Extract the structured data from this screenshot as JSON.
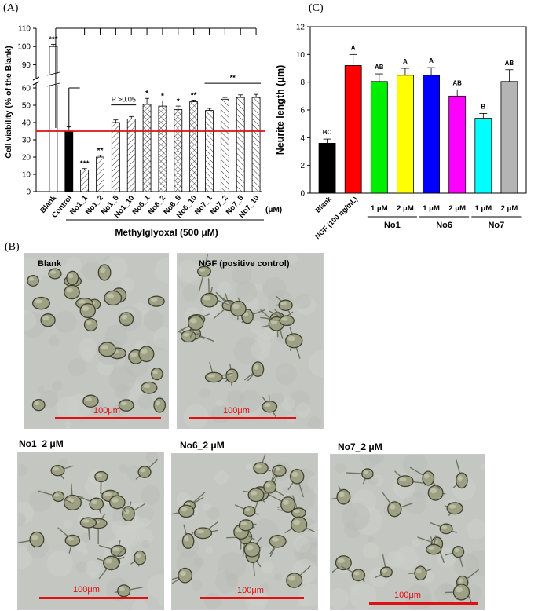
{
  "panels": {
    "a": "(A)",
    "b": "(B)",
    "c": "(C)"
  },
  "chart_data": [
    {
      "type": "bar",
      "ylabel": "Cell viability (% of the Blank)",
      "ylim": [
        0,
        110
      ],
      "y_break": [
        60,
        85
      ],
      "yticks": [
        0,
        10,
        20,
        30,
        40,
        50,
        60,
        90,
        100,
        110
      ],
      "categories": [
        "Blank",
        "Control",
        "No1_1",
        "No1_2",
        "No1_5",
        "No1_10",
        "No6_1",
        "No6_2",
        "No6_5",
        "No6_10",
        "No7_1",
        "No7_2",
        "No7_5",
        "No7_10"
      ],
      "values": [
        100,
        35,
        12.5,
        20,
        40,
        42,
        50.5,
        49.5,
        47.5,
        52,
        47,
        53.5,
        54.5,
        54.5
      ],
      "errors": [
        1.2,
        2.5,
        0.8,
        1.0,
        1.5,
        1.5,
        3.5,
        3.0,
        2.0,
        1.0,
        1.2,
        1.0,
        1.5,
        1.8
      ],
      "patterns": [
        "white",
        "black",
        "hatch-r",
        "hatch-r",
        "hatch-r",
        "hatch-r",
        "cross",
        "cross",
        "cross",
        "cross",
        "hatch-l",
        "hatch-l",
        "hatch-l",
        "hatch-l"
      ],
      "annotations": [
        "***",
        "",
        "***",
        "**",
        "",
        "",
        "*",
        "*",
        "*",
        "**",
        "",
        "",
        "",
        ""
      ],
      "group_annotations": [
        {
          "text": "P >0.05",
          "from": 4,
          "to": 5
        },
        {
          "text": "**",
          "from": 10,
          "to": 13
        }
      ],
      "unit_label": "(μM)",
      "reference_line": 35,
      "group_label": "Methylglyoxal (500  μM)"
    },
    {
      "type": "bar",
      "ylabel": "Neurite length (μm)",
      "ylim": [
        0,
        12
      ],
      "yticks": [
        0,
        2,
        4,
        6,
        8,
        10,
        12
      ],
      "categories": [
        "Blank",
        "NGF (100 ng/mL)",
        "1 μM",
        "2 μM",
        "1 μM",
        "2 μM",
        "1 μM",
        "2 μM"
      ],
      "values": [
        3.6,
        9.2,
        8.05,
        8.5,
        8.5,
        7.0,
        5.4,
        8.05
      ],
      "errors": [
        0.3,
        0.8,
        0.55,
        0.5,
        0.55,
        0.45,
        0.35,
        0.85
      ],
      "colors": [
        "#000000",
        "#ff0000",
        "#00ee00",
        "#ffff00",
        "#0000ff",
        "#ff00ff",
        "#00ffff",
        "#b4b4b4"
      ],
      "letters": [
        "BC",
        "A",
        "AB",
        "A",
        "A",
        "AB",
        "B",
        "AB"
      ],
      "groups": [
        {
          "label": "No1",
          "from": 2,
          "to": 3
        },
        {
          "label": "No6",
          "from": 4,
          "to": 5
        },
        {
          "label": "No7",
          "from": 6,
          "to": 7
        }
      ]
    }
  ],
  "micrographs": [
    {
      "label": "Blank",
      "scale": "100μm"
    },
    {
      "label": "NGF (positive control)",
      "scale": "100μm"
    },
    {
      "label": "No1_2 μM",
      "scale": "100μm"
    },
    {
      "label": "No6_2 μM",
      "scale": "100μm"
    },
    {
      "label": "No7_2 μM",
      "scale": "100μm"
    }
  ]
}
